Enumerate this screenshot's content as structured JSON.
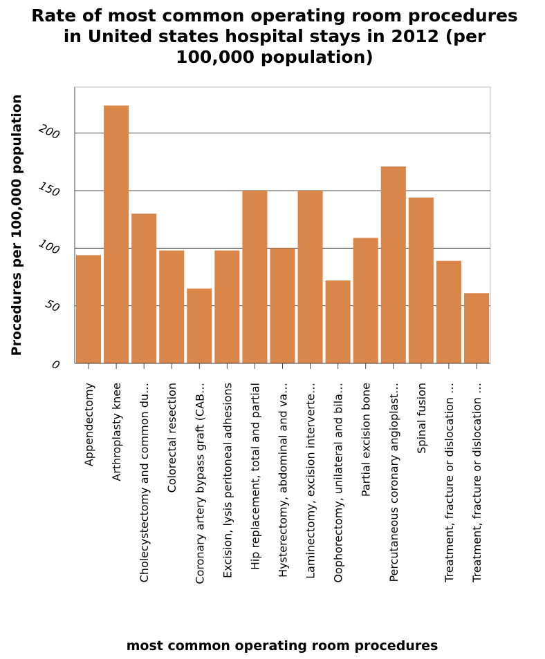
{
  "chart_data": {
    "type": "bar",
    "title": "Rate of most common operating room procedures in United states hospital stays in 2012 (per 100,000 population)",
    "title_lines": [
      "Rate of most common operating room procedures",
      "in United states hospital stays in 2012 (per",
      "100,000 population)"
    ],
    "xlabel": "most common operating room procedures",
    "ylabel": "Procedures per 100,000 population",
    "ylim": [
      0,
      240
    ],
    "yticks": [
      0,
      50,
      100,
      150,
      200
    ],
    "grid": true,
    "bar_color": "#d9864a",
    "categories": [
      "Appendectomy",
      "Arthroplasty knee",
      "Cholecystectomy and common du…",
      "Colorectal resection",
      "Coronary artery bypass graft (CAB…",
      "Excision, lysis peritoneal adhesions",
      "Hip replacement, total and partial",
      "Hysterectomy, abdominal and va…",
      "Laminectomy, excision interverte…",
      "Oophorectomy, unilateral and bila…",
      "Partial excision bone",
      "Percutaneous coronary angioplast…",
      "Spinal fusion",
      "Treatment, fracture or dislocation …",
      "Treatment, fracture or dislocation …"
    ],
    "values": [
      94,
      224,
      130,
      98,
      65,
      98,
      150,
      100,
      150,
      72,
      109,
      171,
      144,
      89,
      61
    ]
  }
}
